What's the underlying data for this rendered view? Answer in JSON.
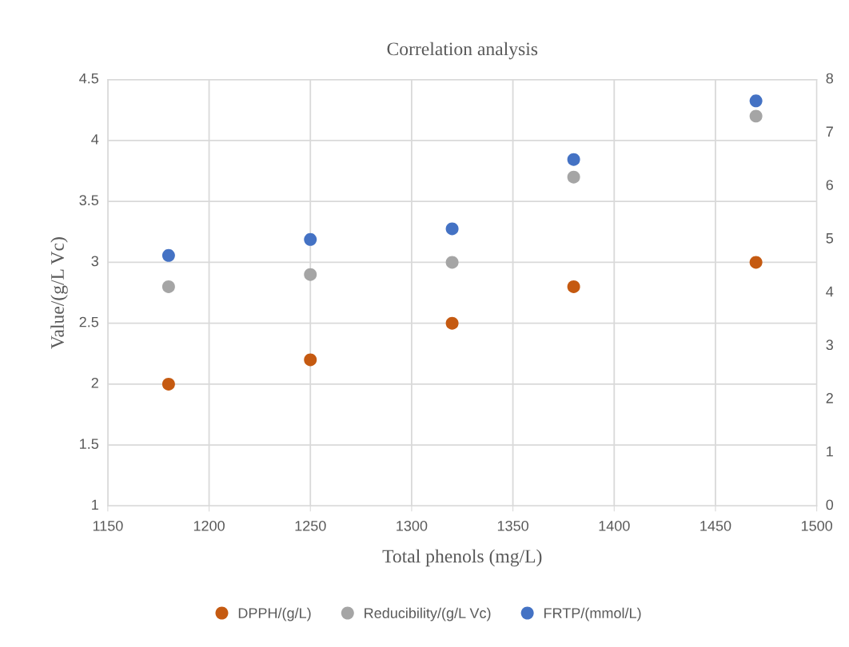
{
  "chart_data": {
    "type": "scatter",
    "title": "Correlation analysis",
    "xlabel": "Total phenols (mg/L)",
    "ylabel": "Value/(g/L Vc)",
    "x": [
      1180,
      1250,
      1320,
      1380,
      1470
    ],
    "series": [
      {
        "name": "DPPH/(g/L)",
        "color": "#c55a11",
        "values": [
          2.0,
          2.2,
          2.5,
          2.8,
          3.0
        ]
      },
      {
        "name": "Reducibility/(g/L Vc)",
        "color": "#a5a5a5",
        "values": [
          2.8,
          2.9,
          3.0,
          3.7,
          4.2
        ]
      },
      {
        "name": "FRTP/(mmol/L)",
        "color": "#4472c4",
        "values": [
          4.7,
          5.0,
          5.2,
          6.5,
          7.6
        ],
        "axis": "y2"
      }
    ],
    "xlim": [
      1150,
      1500
    ],
    "xticks": [
      1150,
      1200,
      1250,
      1300,
      1350,
      1400,
      1450,
      1500
    ],
    "ylim": [
      1,
      4.5
    ],
    "yticks": [
      1,
      1.5,
      2,
      2.5,
      3,
      3.5,
      4,
      4.5
    ],
    "y2lim": [
      0,
      8
    ],
    "y2ticks": [
      0,
      1,
      2,
      3,
      4,
      5,
      6,
      7,
      8
    ],
    "grid": true,
    "legend": "bottom",
    "marker": "circle"
  }
}
